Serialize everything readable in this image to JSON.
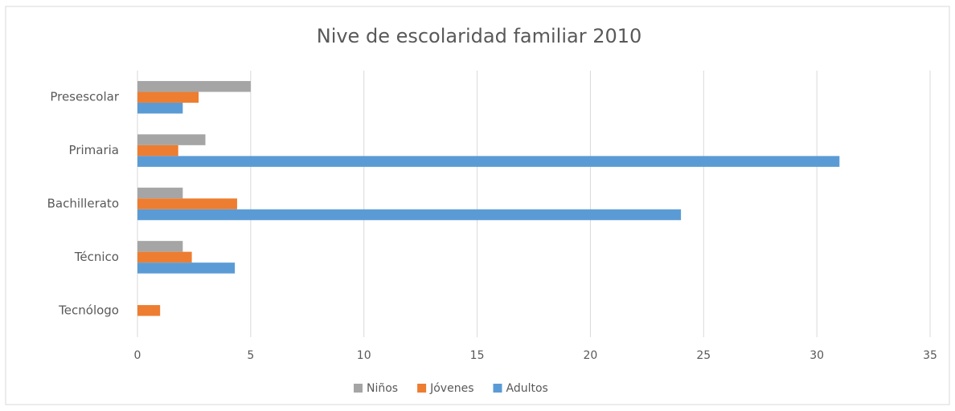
{
  "chart_data": {
    "type": "hbar",
    "title": "Nive de escolaridad familiar 2010",
    "categories": [
      "Presescolar",
      "Primaria",
      "Bachillerato",
      "Técnico",
      "Tecnólogo"
    ],
    "series": [
      {
        "name": "Niños",
        "color": "#a5a5a5",
        "values": [
          5,
          3,
          2,
          2,
          0
        ]
      },
      {
        "name": "Jóvenes",
        "color": "#ed7d31",
        "values": [
          2.7,
          1.8,
          4.4,
          2.4,
          1
        ]
      },
      {
        "name": "Adultos",
        "color": "#5b9bd5",
        "values": [
          2,
          31,
          24,
          4.3,
          0
        ]
      }
    ],
    "xlim": [
      0,
      35
    ],
    "xticks": [
      0,
      5,
      10,
      15,
      20,
      25,
      30,
      35
    ],
    "grid": true,
    "legend": "bottom"
  }
}
